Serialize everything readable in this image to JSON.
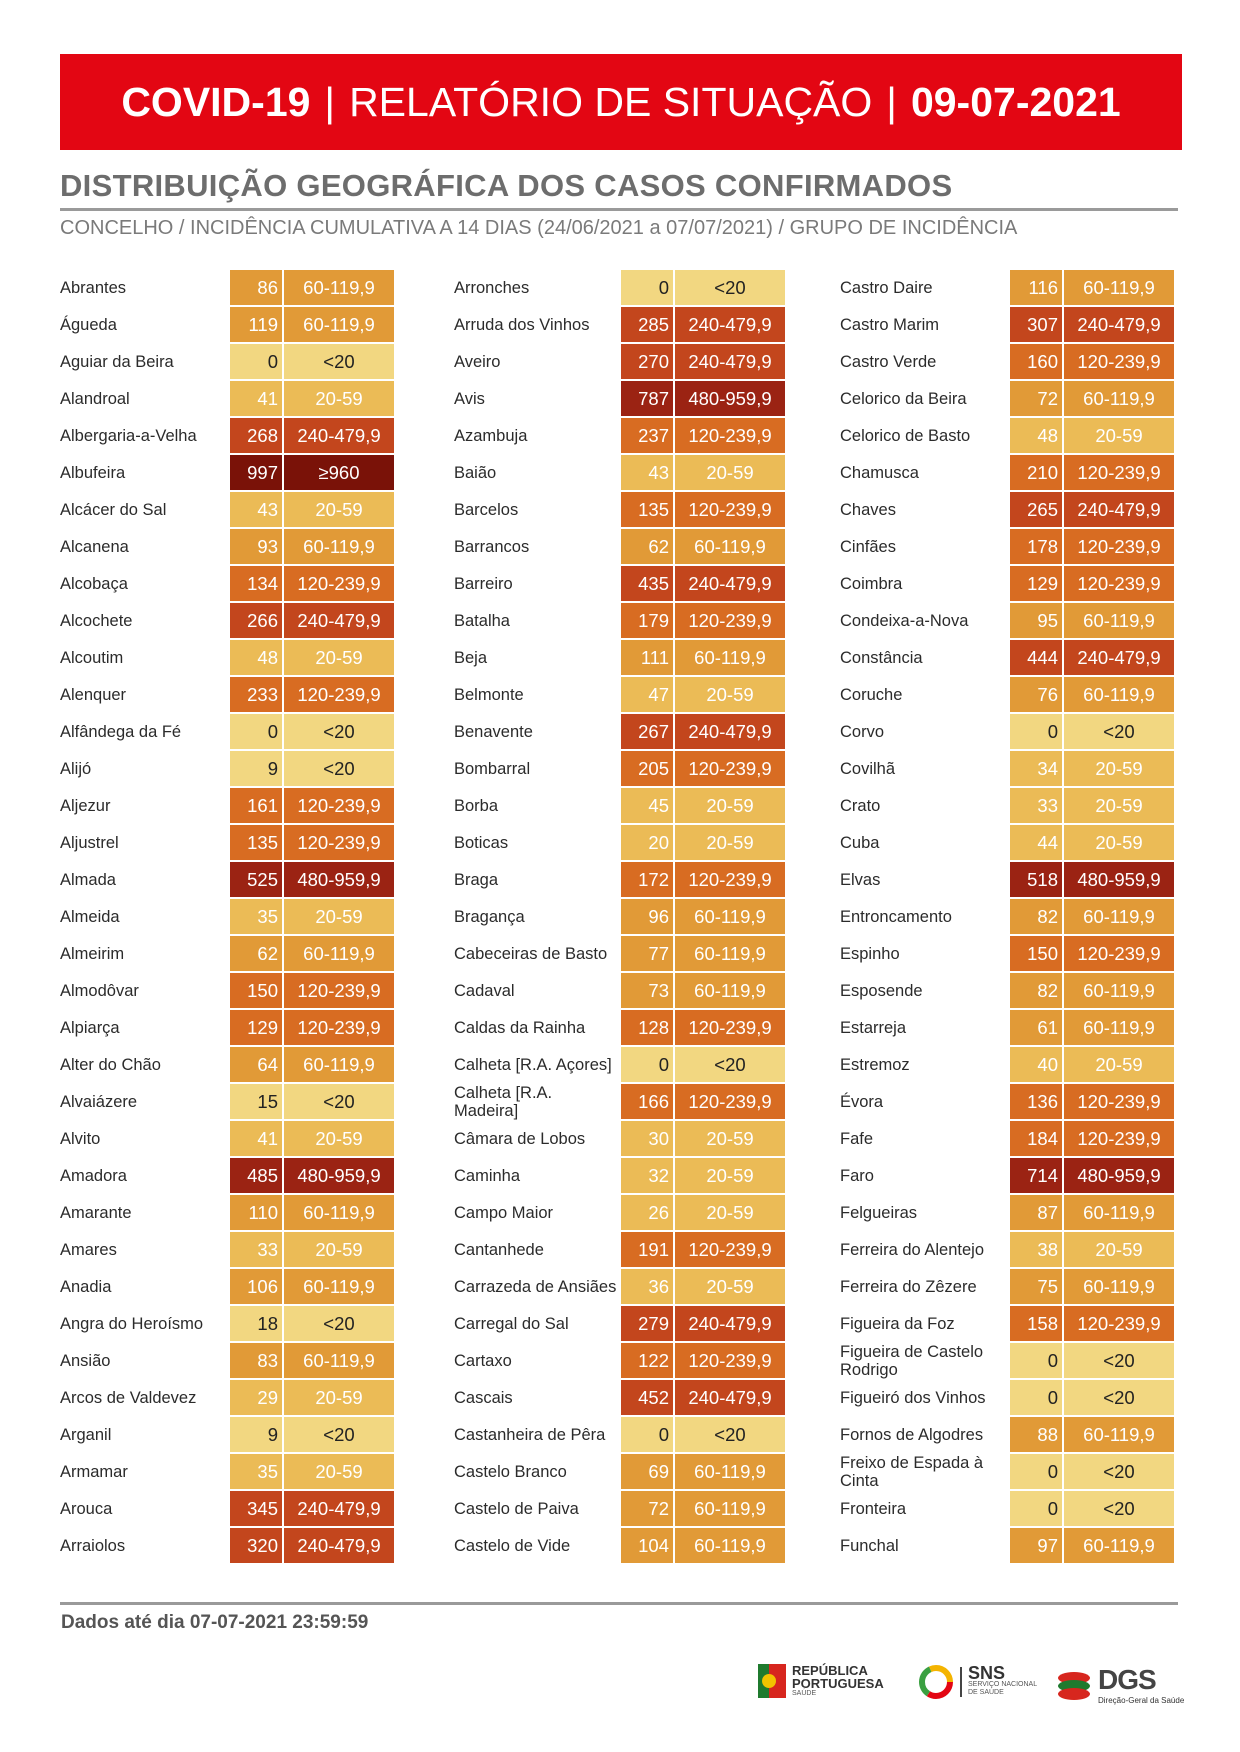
{
  "header": {
    "part1": "COVID-19",
    "sep1": "|",
    "part2": "RELATÓRIO DE SITUAÇÃO",
    "sep2": "|",
    "part3": "09-07-2021"
  },
  "title": "DISTRIBUIÇÃO GEOGRÁFICA DOS CASOS CONFIRMADOS",
  "subtitle": "CONCELHO / INCIDÊNCIA CUMULATIVA A 14 DIAS (24/06/2021 a 07/07/2021) / GRUPO DE INCIDÊNCIA",
  "band_colors": {
    "<20": "#f2d781",
    "20-59": "#ebbb56",
    "60-119,9": "#e19a37",
    "120-239,9": "#d86c22",
    "240-479,9": "#c3461d",
    "480-959,9": "#9b2313",
    "≥960": "#7a1208"
  },
  "columns": [
    [
      {
        "name": "Abrantes",
        "value": "86",
        "band": "60-119,9"
      },
      {
        "name": "Águeda",
        "value": "119",
        "band": "60-119,9"
      },
      {
        "name": "Aguiar da Beira",
        "value": "0",
        "band": "<20"
      },
      {
        "name": "Alandroal",
        "value": "41",
        "band": "20-59"
      },
      {
        "name": "Albergaria-a-Velha",
        "value": "268",
        "band": "240-479,9"
      },
      {
        "name": "Albufeira",
        "value": "997",
        "band": "≥960"
      },
      {
        "name": "Alcácer do Sal",
        "value": "43",
        "band": "20-59"
      },
      {
        "name": "Alcanena",
        "value": "93",
        "band": "60-119,9"
      },
      {
        "name": "Alcobaça",
        "value": "134",
        "band": "120-239,9"
      },
      {
        "name": "Alcochete",
        "value": "266",
        "band": "240-479,9"
      },
      {
        "name": "Alcoutim",
        "value": "48",
        "band": "20-59"
      },
      {
        "name": "Alenquer",
        "value": "233",
        "band": "120-239,9"
      },
      {
        "name": "Alfândega da Fé",
        "value": "0",
        "band": "<20"
      },
      {
        "name": "Alijó",
        "value": "9",
        "band": "<20"
      },
      {
        "name": "Aljezur",
        "value": "161",
        "band": "120-239,9"
      },
      {
        "name": "Aljustrel",
        "value": "135",
        "band": "120-239,9"
      },
      {
        "name": "Almada",
        "value": "525",
        "band": "480-959,9"
      },
      {
        "name": "Almeida",
        "value": "35",
        "band": "20-59"
      },
      {
        "name": "Almeirim",
        "value": "62",
        "band": "60-119,9"
      },
      {
        "name": "Almodôvar",
        "value": "150",
        "band": "120-239,9"
      },
      {
        "name": "Alpiarça",
        "value": "129",
        "band": "120-239,9"
      },
      {
        "name": "Alter do Chão",
        "value": "64",
        "band": "60-119,9"
      },
      {
        "name": "Alvaiázere",
        "value": "15",
        "band": "<20"
      },
      {
        "name": "Alvito",
        "value": "41",
        "band": "20-59"
      },
      {
        "name": "Amadora",
        "value": "485",
        "band": "480-959,9"
      },
      {
        "name": "Amarante",
        "value": "110",
        "band": "60-119,9"
      },
      {
        "name": "Amares",
        "value": "33",
        "band": "20-59"
      },
      {
        "name": "Anadia",
        "value": "106",
        "band": "60-119,9"
      },
      {
        "name": "Angra do Heroísmo",
        "value": "18",
        "band": "<20"
      },
      {
        "name": "Ansião",
        "value": "83",
        "band": "60-119,9"
      },
      {
        "name": "Arcos de Valdevez",
        "value": "29",
        "band": "20-59"
      },
      {
        "name": "Arganil",
        "value": "9",
        "band": "<20"
      },
      {
        "name": "Armamar",
        "value": "35",
        "band": "20-59"
      },
      {
        "name": "Arouca",
        "value": "345",
        "band": "240-479,9"
      },
      {
        "name": "Arraiolos",
        "value": "320",
        "band": "240-479,9"
      }
    ],
    [
      {
        "name": "Arronches",
        "value": "0",
        "band": "<20"
      },
      {
        "name": "Arruda dos Vinhos",
        "value": "285",
        "band": "240-479,9"
      },
      {
        "name": "Aveiro",
        "value": "270",
        "band": "240-479,9"
      },
      {
        "name": "Avis",
        "value": "787",
        "band": "480-959,9"
      },
      {
        "name": "Azambuja",
        "value": "237",
        "band": "120-239,9"
      },
      {
        "name": "Baião",
        "value": "43",
        "band": "20-59"
      },
      {
        "name": "Barcelos",
        "value": "135",
        "band": "120-239,9"
      },
      {
        "name": "Barrancos",
        "value": "62",
        "band": "60-119,9"
      },
      {
        "name": "Barreiro",
        "value": "435",
        "band": "240-479,9"
      },
      {
        "name": "Batalha",
        "value": "179",
        "band": "120-239,9"
      },
      {
        "name": "Beja",
        "value": "111",
        "band": "60-119,9"
      },
      {
        "name": "Belmonte",
        "value": "47",
        "band": "20-59"
      },
      {
        "name": "Benavente",
        "value": "267",
        "band": "240-479,9"
      },
      {
        "name": "Bombarral",
        "value": "205",
        "band": "120-239,9"
      },
      {
        "name": "Borba",
        "value": "45",
        "band": "20-59"
      },
      {
        "name": "Boticas",
        "value": "20",
        "band": "20-59"
      },
      {
        "name": "Braga",
        "value": "172",
        "band": "120-239,9"
      },
      {
        "name": "Bragança",
        "value": "96",
        "band": "60-119,9"
      },
      {
        "name": "Cabeceiras de Basto",
        "value": "77",
        "band": "60-119,9"
      },
      {
        "name": "Cadaval",
        "value": "73",
        "band": "60-119,9"
      },
      {
        "name": "Caldas da Rainha",
        "value": "128",
        "band": "120-239,9"
      },
      {
        "name": "Calheta [R.A. Açores]",
        "value": "0",
        "band": "<20"
      },
      {
        "name": "Calheta [R.A. Madeira]",
        "value": "166",
        "band": "120-239,9"
      },
      {
        "name": "Câmara de Lobos",
        "value": "30",
        "band": "20-59"
      },
      {
        "name": "Caminha",
        "value": "32",
        "band": "20-59"
      },
      {
        "name": "Campo Maior",
        "value": "26",
        "band": "20-59"
      },
      {
        "name": "Cantanhede",
        "value": "191",
        "band": "120-239,9"
      },
      {
        "name": "Carrazeda de Ansiães",
        "value": "36",
        "band": "20-59"
      },
      {
        "name": "Carregal do Sal",
        "value": "279",
        "band": "240-479,9"
      },
      {
        "name": "Cartaxo",
        "value": "122",
        "band": "120-239,9"
      },
      {
        "name": "Cascais",
        "value": "452",
        "band": "240-479,9"
      },
      {
        "name": "Castanheira de Pêra",
        "value": "0",
        "band": "<20"
      },
      {
        "name": "Castelo Branco",
        "value": "69",
        "band": "60-119,9"
      },
      {
        "name": "Castelo de Paiva",
        "value": "72",
        "band": "60-119,9"
      },
      {
        "name": "Castelo de Vide",
        "value": "104",
        "band": "60-119,9"
      }
    ],
    [
      {
        "name": "Castro Daire",
        "value": "116",
        "band": "60-119,9"
      },
      {
        "name": "Castro Marim",
        "value": "307",
        "band": "240-479,9"
      },
      {
        "name": "Castro Verde",
        "value": "160",
        "band": "120-239,9"
      },
      {
        "name": "Celorico da Beira",
        "value": "72",
        "band": "60-119,9"
      },
      {
        "name": "Celorico de Basto",
        "value": "48",
        "band": "20-59"
      },
      {
        "name": "Chamusca",
        "value": "210",
        "band": "120-239,9"
      },
      {
        "name": "Chaves",
        "value": "265",
        "band": "240-479,9"
      },
      {
        "name": "Cinfães",
        "value": "178",
        "band": "120-239,9"
      },
      {
        "name": "Coimbra",
        "value": "129",
        "band": "120-239,9"
      },
      {
        "name": "Condeixa-a-Nova",
        "value": "95",
        "band": "60-119,9"
      },
      {
        "name": "Constância",
        "value": "444",
        "band": "240-479,9"
      },
      {
        "name": "Coruche",
        "value": "76",
        "band": "60-119,9"
      },
      {
        "name": "Corvo",
        "value": "0",
        "band": "<20"
      },
      {
        "name": "Covilhã",
        "value": "34",
        "band": "20-59"
      },
      {
        "name": "Crato",
        "value": "33",
        "band": "20-59"
      },
      {
        "name": "Cuba",
        "value": "44",
        "band": "20-59"
      },
      {
        "name": "Elvas",
        "value": "518",
        "band": "480-959,9"
      },
      {
        "name": "Entroncamento",
        "value": "82",
        "band": "60-119,9"
      },
      {
        "name": "Espinho",
        "value": "150",
        "band": "120-239,9"
      },
      {
        "name": "Esposende",
        "value": "82",
        "band": "60-119,9"
      },
      {
        "name": "Estarreja",
        "value": "61",
        "band": "60-119,9"
      },
      {
        "name": "Estremoz",
        "value": "40",
        "band": "20-59"
      },
      {
        "name": "Évora",
        "value": "136",
        "band": "120-239,9"
      },
      {
        "name": "Fafe",
        "value": "184",
        "band": "120-239,9"
      },
      {
        "name": "Faro",
        "value": "714",
        "band": "480-959,9"
      },
      {
        "name": "Felgueiras",
        "value": "87",
        "band": "60-119,9"
      },
      {
        "name": "Ferreira do Alentejo",
        "value": "38",
        "band": "20-59"
      },
      {
        "name": "Ferreira do Zêzere",
        "value": "75",
        "band": "60-119,9"
      },
      {
        "name": "Figueira da Foz",
        "value": "158",
        "band": "120-239,9"
      },
      {
        "name": "Figueira de Castelo Rodrigo",
        "value": "0",
        "band": "<20"
      },
      {
        "name": "Figueiró dos Vinhos",
        "value": "0",
        "band": "<20"
      },
      {
        "name": "Fornos de Algodres",
        "value": "88",
        "band": "60-119,9"
      },
      {
        "name": "Freixo de Espada à Cinta",
        "value": "0",
        "band": "<20"
      },
      {
        "name": "Fronteira",
        "value": "0",
        "band": "<20"
      },
      {
        "name": "Funchal",
        "value": "97",
        "band": "60-119,9"
      }
    ]
  ],
  "footer": {
    "note": "Dados até dia 07-07-2021 23:59:59",
    "logos": {
      "republica_l1": "REPÚBLICA",
      "republica_l2": "PORTUGUESA",
      "republica_l3": "SAÚDE",
      "sns": "SNS",
      "sns_sub1": "SERVIÇO NACIONAL",
      "sns_sub2": "DE SAÚDE",
      "dgs": "DGS",
      "dgs_sub": "Direção-Geral da Saúde"
    }
  }
}
